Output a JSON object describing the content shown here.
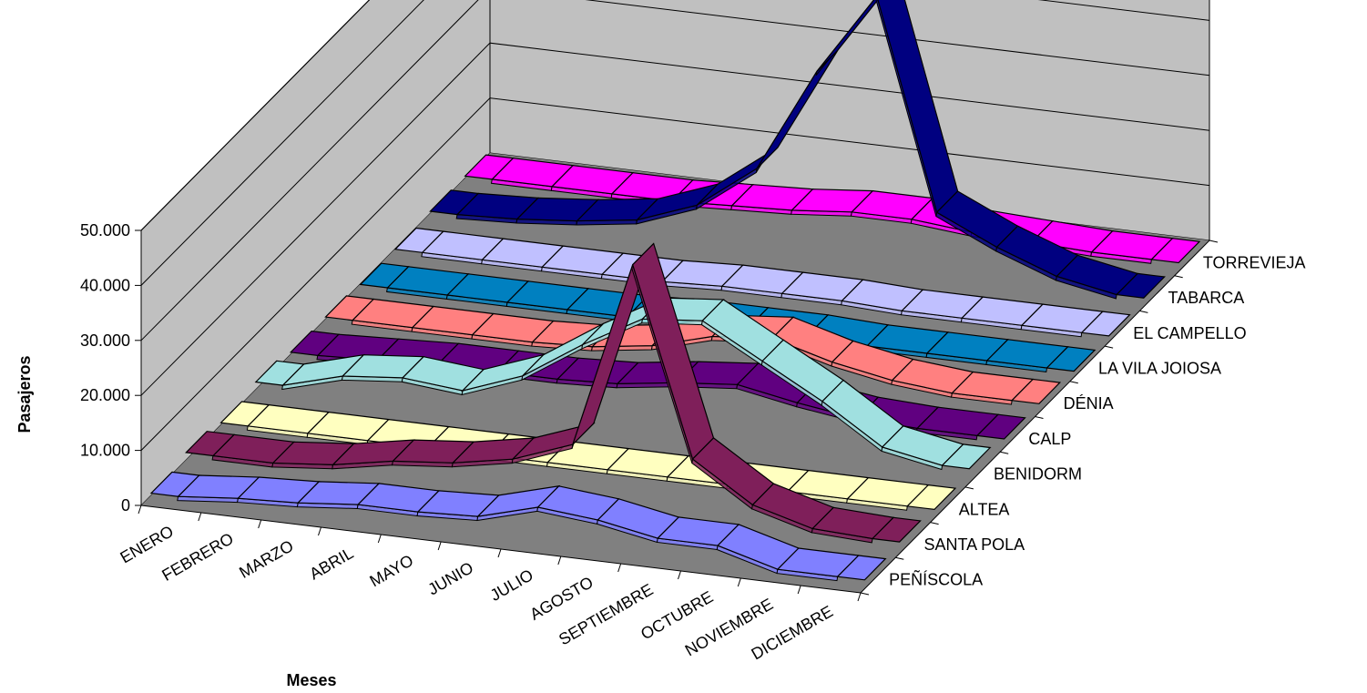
{
  "chart_data": {
    "type": "line",
    "style": "3d-ribbon",
    "xlabel": "Meses",
    "ylabel": "Pasajeros",
    "ylim": [
      0,
      50000
    ],
    "yticks": [
      "0",
      "10.000",
      "20.000",
      "30.000",
      "40.000",
      "50.000"
    ],
    "grid": true,
    "categories": [
      "ENERO",
      "FEBRERO",
      "MARZO",
      "ABRIL",
      "MAYO",
      "JUNIO",
      "JULIO",
      "AGOSTO",
      "SEPTIEMBRE",
      "OCTUBRE",
      "NOVIEMBRE",
      "DICIEMBRE"
    ],
    "series": [
      {
        "name": "PEÑÍSCOLA",
        "color": "#8080FF",
        "values": [
          1000,
          2000,
          2500,
          3500,
          3500,
          4000,
          7000,
          6000,
          4000,
          4000,
          1000,
          1000
        ]
      },
      {
        "name": "SANTA POLA",
        "color": "#7F1F5A",
        "values": [
          2000,
          2000,
          3000,
          5000,
          6000,
          8000,
          12000,
          46000,
          12000,
          5000,
          2000,
          1500
        ]
      },
      {
        "name": "ALTEA",
        "color": "#FFFFC0",
        "values": [
          1000,
          1000,
          1000,
          1000,
          1000,
          1000,
          1000,
          1000,
          1000,
          1000,
          1000,
          1000
        ]
      },
      {
        "name": "BENIDORM",
        "color": "#A0E0E0",
        "values": [
          2000,
          5000,
          6000,
          5000,
          9000,
          16000,
          22000,
          23000,
          17000,
          11000,
          4000,
          2000
        ]
      },
      {
        "name": "CALP",
        "color": "#600080",
        "values": [
          1000,
          1500,
          2000,
          2000,
          2000,
          2500,
          4000,
          5000,
          3000,
          1500,
          1000,
          1000
        ]
      },
      {
        "name": "DÉNIA",
        "color": "#FF8080",
        "values": [
          1000,
          1000,
          1000,
          1000,
          1500,
          3000,
          6000,
          7000,
          4000,
          2000,
          1000,
          1000
        ]
      },
      {
        "name": "LA VILA JOIOSA",
        "color": "#0080C0",
        "values": [
          500,
          500,
          500,
          500,
          500,
          1000,
          1000,
          1000,
          500,
          500,
          500,
          500
        ]
      },
      {
        "name": "EL CAMPELLO",
        "color": "#C0C0FF",
        "values": [
          500,
          500,
          500,
          500,
          500,
          1000,
          1000,
          1000,
          500,
          500,
          500,
          500
        ]
      },
      {
        "name": "TABARCA",
        "color": "#000080",
        "values": [
          1000,
          1500,
          2500,
          4000,
          8000,
          16000,
          35000,
          50000,
          12000,
          7000,
          3000,
          1000
        ]
      },
      {
        "name": "TORREVIEJA",
        "color": "#FF00FF",
        "values": [
          1000,
          1000,
          1000,
          1000,
          1500,
          2000,
          3000,
          3000,
          2000,
          1500,
          1000,
          1000
        ]
      }
    ]
  }
}
